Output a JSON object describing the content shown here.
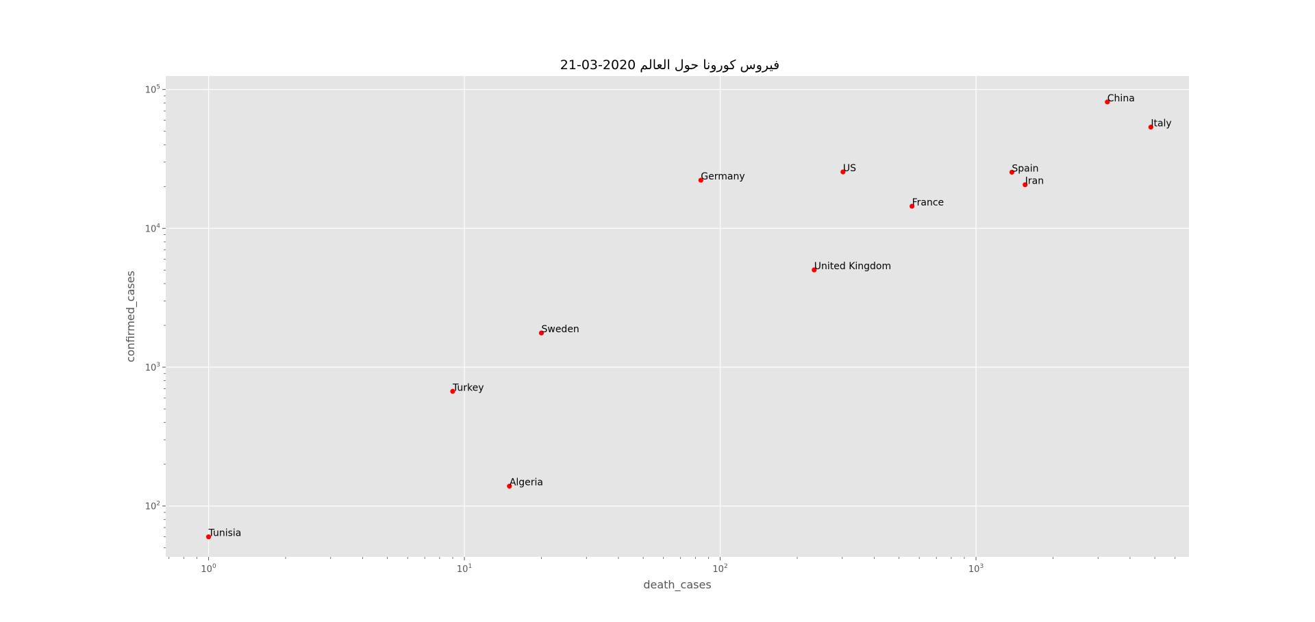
{
  "chart_data": {
    "type": "scatter",
    "title": "فيروس كورونا حول العالم 2020-03-21",
    "xlabel": "death_cases",
    "ylabel": "confirmed_cases",
    "xscale": "log",
    "yscale": "log",
    "xlim": [
      0.68,
      6800
    ],
    "ylim": [
      43,
      125000
    ],
    "grid": true,
    "point_color": "#ff0000",
    "background_color": "#e5e5e5",
    "x_ticks": [
      {
        "value": 1,
        "base": "10",
        "exp": "0"
      },
      {
        "value": 10,
        "base": "10",
        "exp": "1"
      },
      {
        "value": 100,
        "base": "10",
        "exp": "2"
      },
      {
        "value": 1000,
        "base": "10",
        "exp": "3"
      }
    ],
    "y_ticks": [
      {
        "value": 100,
        "base": "10",
        "exp": "2"
      },
      {
        "value": 1000,
        "base": "10",
        "exp": "3"
      },
      {
        "value": 10000,
        "base": "10",
        "exp": "4"
      },
      {
        "value": 100000,
        "base": "10",
        "exp": "5"
      }
    ],
    "points": [
      {
        "label": "Tunisia",
        "x": 1,
        "y": 60
      },
      {
        "label": "Turkey",
        "x": 9,
        "y": 670
      },
      {
        "label": "Algeria",
        "x": 15,
        "y": 139
      },
      {
        "label": "Sweden",
        "x": 20,
        "y": 1763
      },
      {
        "label": "Germany",
        "x": 84,
        "y": 22213
      },
      {
        "label": "United Kingdom",
        "x": 233,
        "y": 5018
      },
      {
        "label": "US",
        "x": 302,
        "y": 25489
      },
      {
        "label": "France",
        "x": 562,
        "y": 14431
      },
      {
        "label": "Spain",
        "x": 1381,
        "y": 25374
      },
      {
        "label": "Iran",
        "x": 1556,
        "y": 20610
      },
      {
        "label": "China",
        "x": 3261,
        "y": 81305
      },
      {
        "label": "Italy",
        "x": 4825,
        "y": 53578
      }
    ]
  }
}
